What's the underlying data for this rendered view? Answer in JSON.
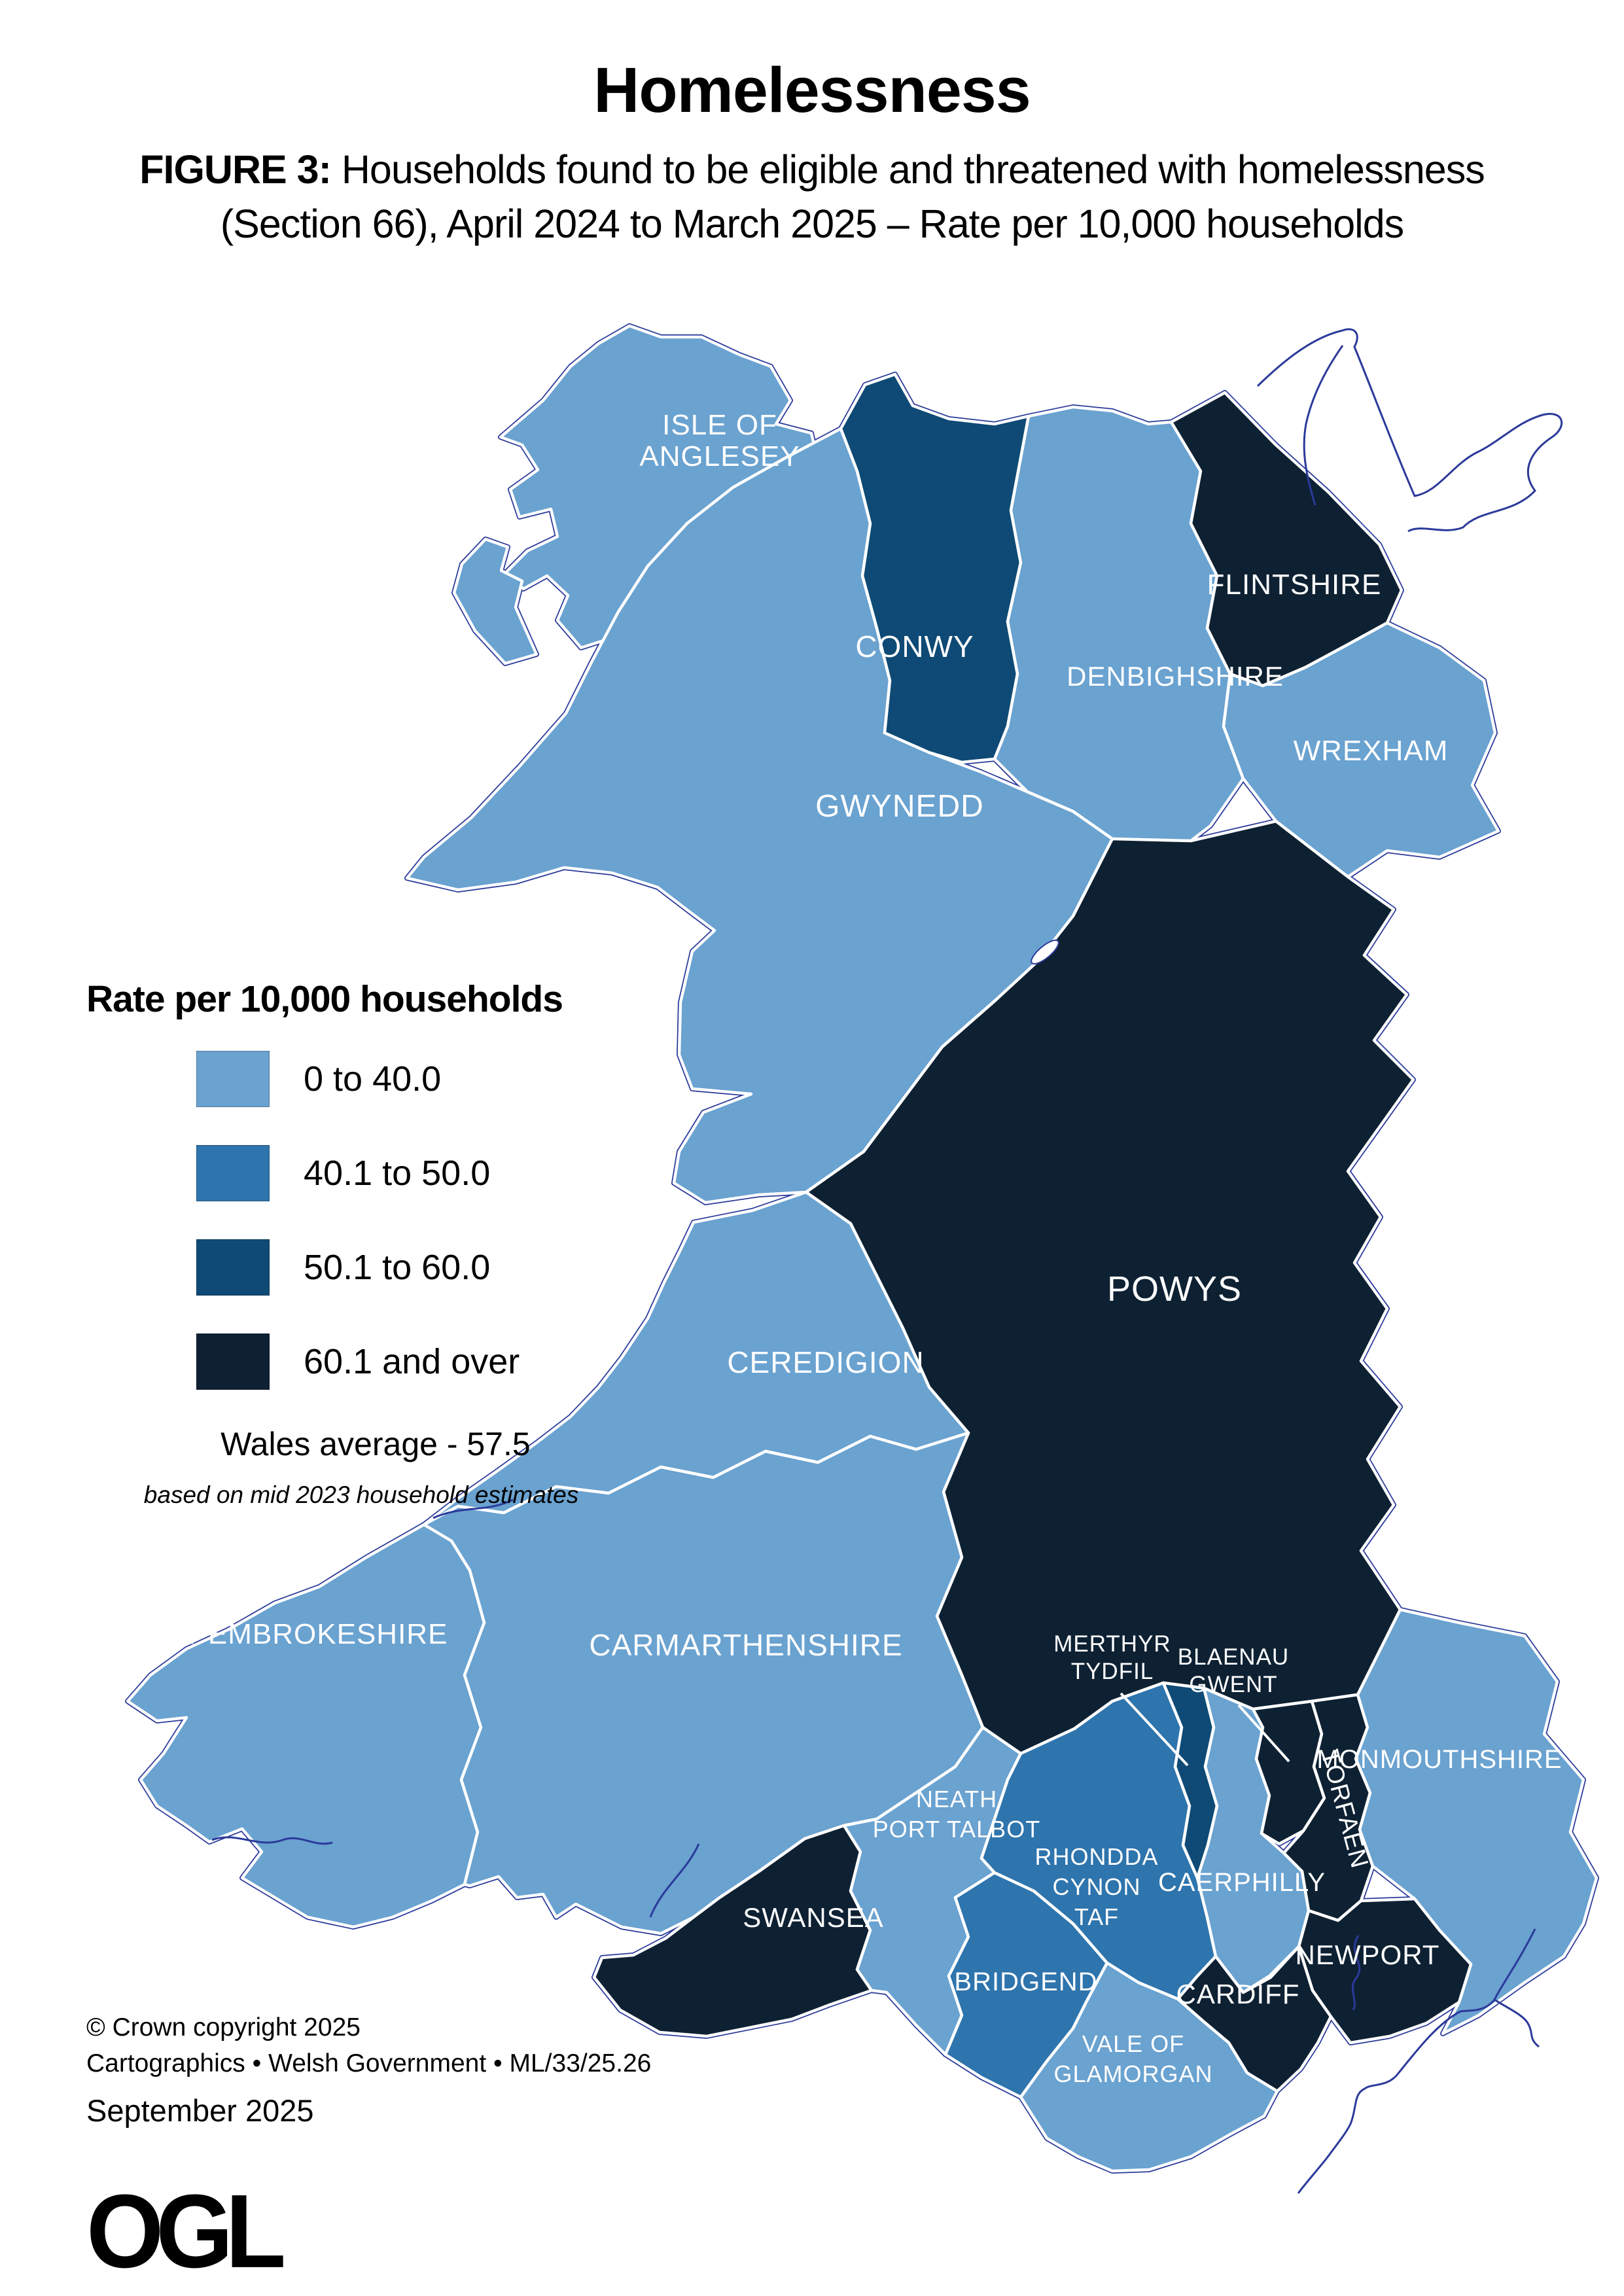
{
  "header": {
    "title": "Homelessness",
    "figure_label": "FIGURE 3:",
    "subtitle_line1_rest": " Households found to be eligible and threatened with homelessness",
    "subtitle_line2": "(Section 66), April 2024 to March 2025 – Rate per 10,000 households"
  },
  "legend": {
    "title": "Rate per 10,000 households",
    "items": [
      {
        "label": "0 to 40.0",
        "class": "c1"
      },
      {
        "label": "40.1 to 50.0",
        "class": "c2"
      },
      {
        "label": "50.1 to 60.0",
        "class": "c3"
      },
      {
        "label": "60.1 and over",
        "class": "c4"
      }
    ],
    "average": "Wales average - 57.5",
    "note": "based on mid 2023 household estimates"
  },
  "map": {
    "class_colors": {
      "c1": "#6aa2d0",
      "c2": "#2e74ad",
      "c3": "#0e4a75",
      "c4": "#0e2133"
    },
    "coast_color": "#2b3a9a",
    "border_color": "#ffffff",
    "regions": [
      {
        "id": "isle-of-anglesey",
        "name": "Isle of Anglesey",
        "lines": [
          "ISLE OF",
          "ANGLESEY"
        ],
        "class": "c1"
      },
      {
        "id": "gwynedd",
        "name": "Gwynedd",
        "lines": [
          "GWYNEDD"
        ],
        "class": "c1"
      },
      {
        "id": "conwy",
        "name": "Conwy",
        "lines": [
          "CONWY"
        ],
        "class": "c3"
      },
      {
        "id": "denbighshire",
        "name": "Denbighshire",
        "lines": [
          "DENBIGHSHIRE"
        ],
        "class": "c1"
      },
      {
        "id": "flintshire",
        "name": "Flintshire",
        "lines": [
          "FLINTSHIRE"
        ],
        "class": "c4"
      },
      {
        "id": "wrexham",
        "name": "Wrexham",
        "lines": [
          "WREXHAM"
        ],
        "class": "c1"
      },
      {
        "id": "powys",
        "name": "Powys",
        "lines": [
          "POWYS"
        ],
        "class": "c4"
      },
      {
        "id": "ceredigion",
        "name": "Ceredigion",
        "lines": [
          "CEREDIGION"
        ],
        "class": "c1"
      },
      {
        "id": "pembrokeshire",
        "name": "Pembrokeshire",
        "lines": [
          "PEMBROKESHIRE"
        ],
        "class": "c1"
      },
      {
        "id": "carmarthenshire",
        "name": "Carmarthenshire",
        "lines": [
          "CARMARTHENSHIRE"
        ],
        "class": "c1"
      },
      {
        "id": "swansea",
        "name": "Swansea",
        "lines": [
          "SWANSEA"
        ],
        "class": "c4"
      },
      {
        "id": "neath-port-talbot",
        "name": "Neath Port Talbot",
        "lines": [
          "NEATH",
          "PORT TALBOT"
        ],
        "class": "c1"
      },
      {
        "id": "bridgend",
        "name": "Bridgend",
        "lines": [
          "BRIDGEND"
        ],
        "class": "c2"
      },
      {
        "id": "rhondda-cynon-taf",
        "name": "Rhondda Cynon Taf",
        "lines": [
          "RHONDDA",
          "CYNON",
          "TAF"
        ],
        "class": "c2"
      },
      {
        "id": "merthyr-tydfil",
        "name": "Merthyr Tydfil",
        "lines": [
          "MERTHYR",
          "TYDFIL"
        ],
        "class": "c3"
      },
      {
        "id": "caerphilly",
        "name": "Caerphilly",
        "lines": [
          "CAERPHILLY"
        ],
        "class": "c1"
      },
      {
        "id": "blaenau-gwent",
        "name": "Blaenau Gwent",
        "lines": [
          "BLAENAU",
          "GWENT"
        ],
        "class": "c4"
      },
      {
        "id": "torfaen",
        "name": "Torfaen",
        "lines": [
          "TORFAEN"
        ],
        "class": "c4"
      },
      {
        "id": "monmouthshire",
        "name": "Monmouthshire",
        "lines": [
          "MONMOUTHSHIRE"
        ],
        "class": "c1"
      },
      {
        "id": "newport",
        "name": "Newport",
        "lines": [
          "NEWPORT"
        ],
        "class": "c4"
      },
      {
        "id": "cardiff",
        "name": "Cardiff",
        "lines": [
          "CARDIFF"
        ],
        "class": "c4"
      },
      {
        "id": "vale-of-glamorgan",
        "name": "Vale of Glamorgan",
        "lines": [
          "VALE OF",
          "GLAMORGAN"
        ],
        "class": "c1"
      }
    ]
  },
  "footer": {
    "copyright": "© Crown copyright 2025",
    "credits": "Cartographics • Welsh Government • ML/33/25.26",
    "date": "September 2025",
    "logo": "OGL"
  }
}
